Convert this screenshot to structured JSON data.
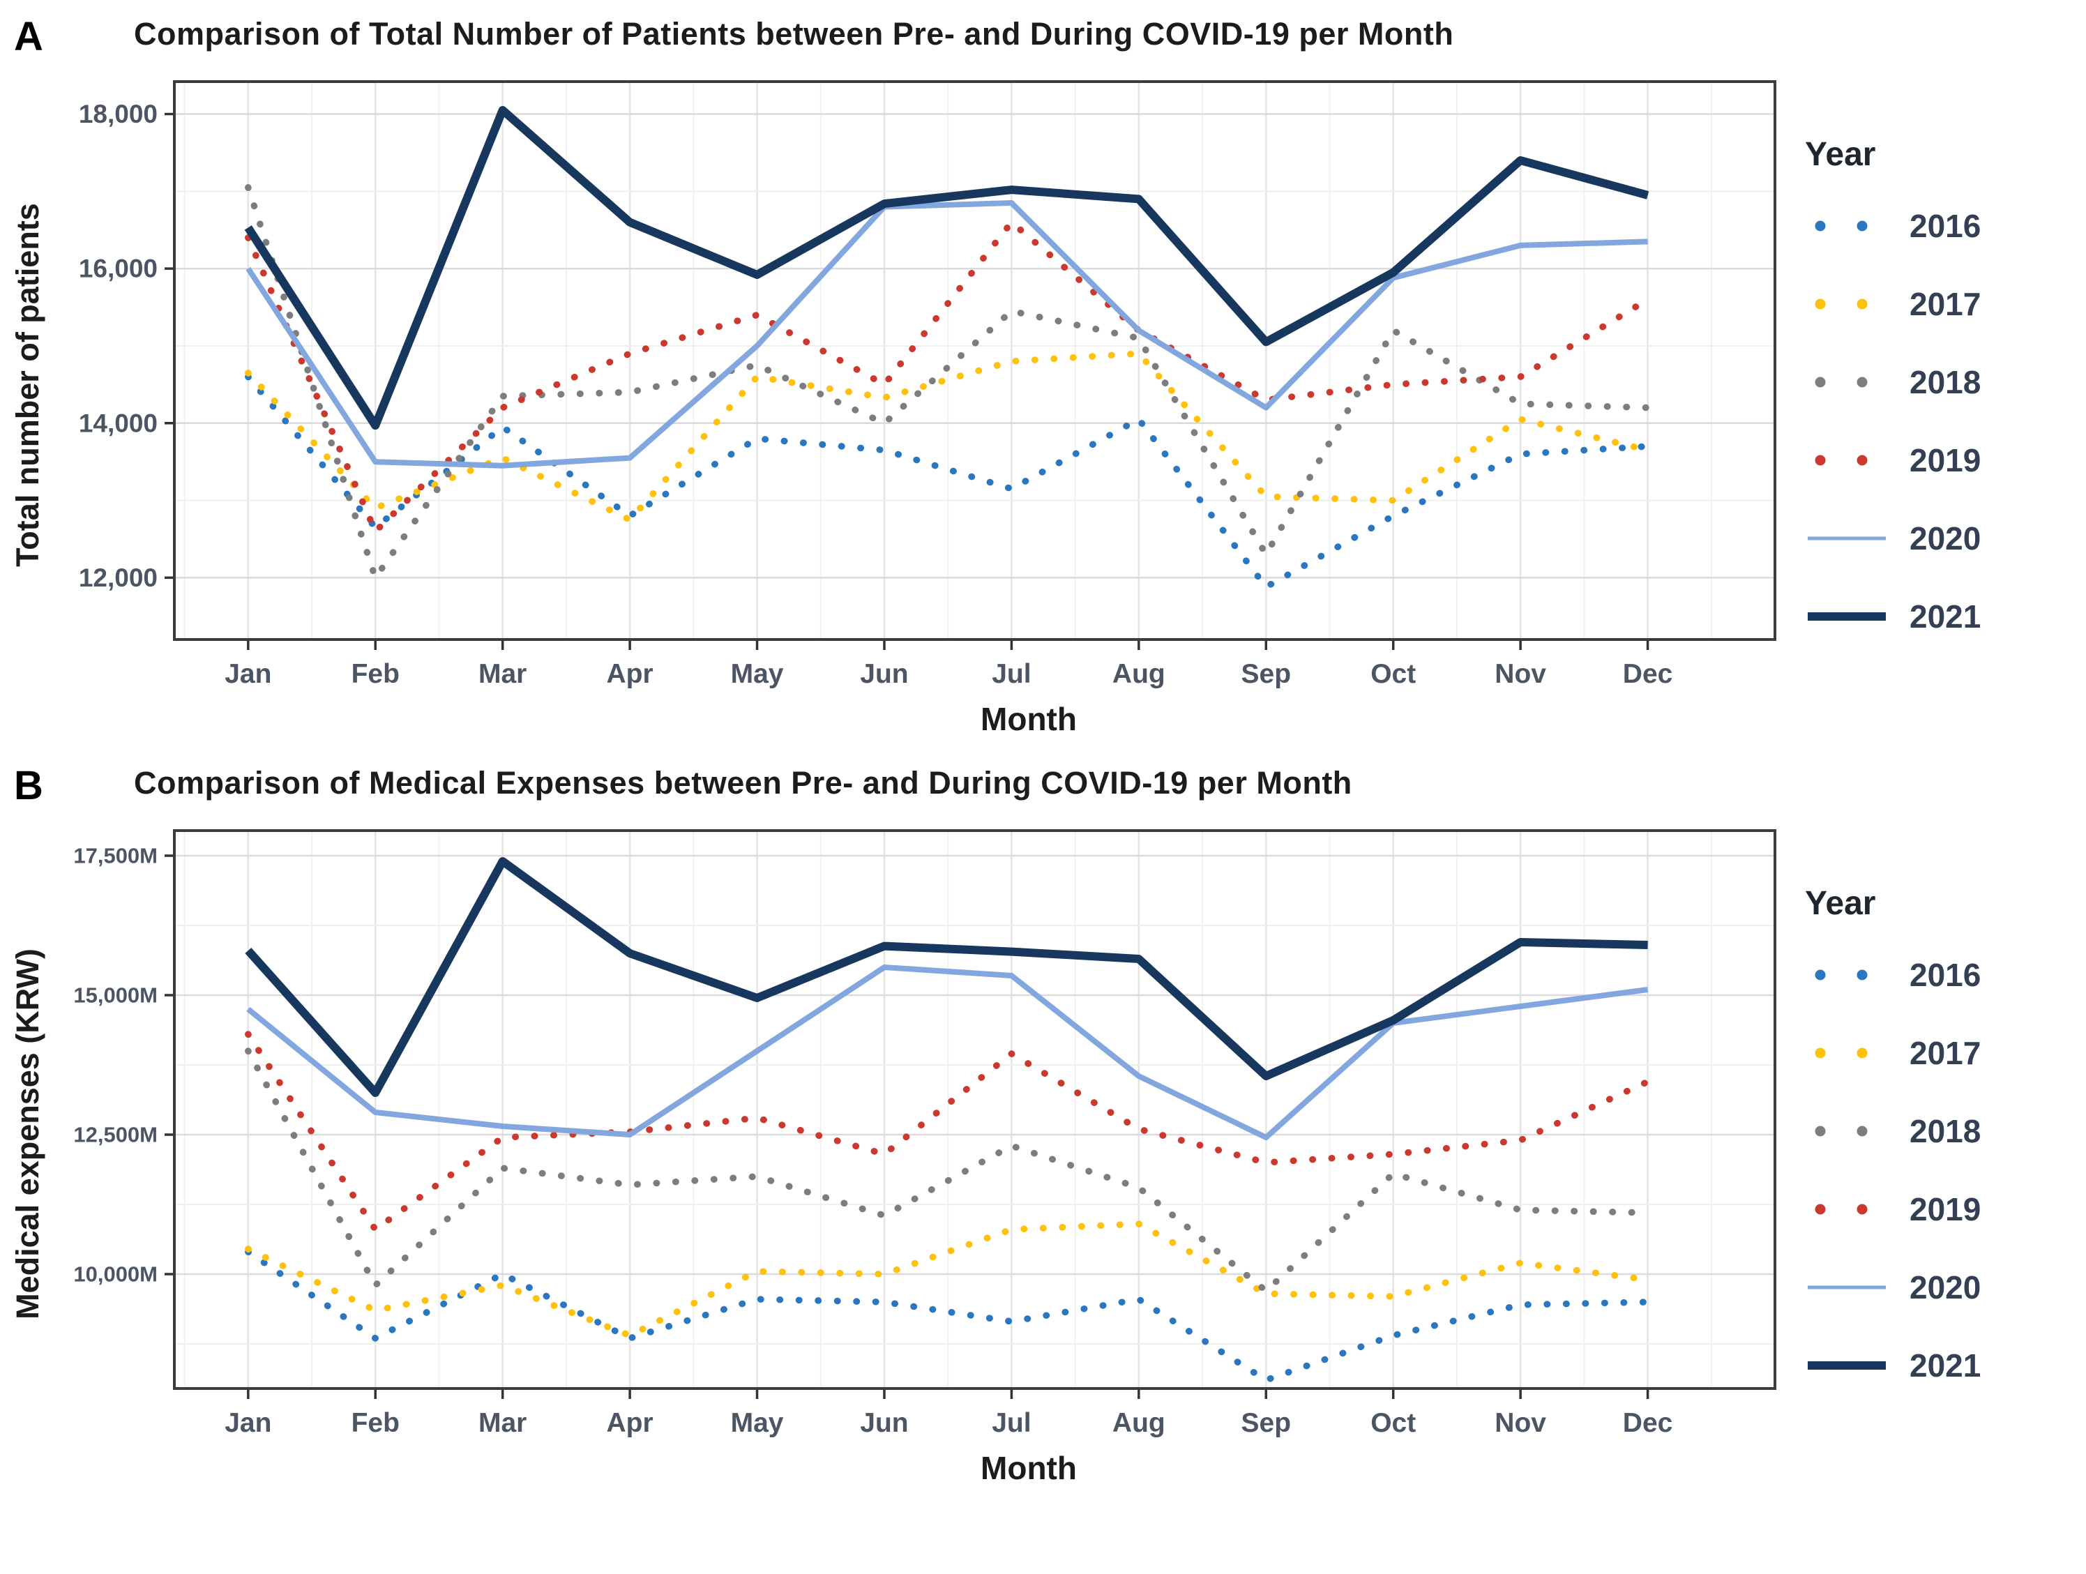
{
  "figure": {
    "type": "two-panel line chart figure",
    "panels": [
      "A",
      "B"
    ]
  },
  "chart_data": [
    {
      "panel_label": "A",
      "type": "line",
      "title": "Comparison of Total Number of Patients between Pre- and During COVID-19 per Month",
      "xlabel": "Month",
      "ylabel": "Total number of patients",
      "legend_title": "Year",
      "legend_position": "right",
      "grid": true,
      "categories": [
        "Jan",
        "Feb",
        "Mar",
        "Apr",
        "May",
        "Jun",
        "Jul",
        "Aug",
        "Sep",
        "Oct",
        "Nov",
        "Dec"
      ],
      "ylim": [
        11200,
        18420
      ],
      "grid_y": {
        "start": 12000,
        "end": 18000,
        "step": 1000
      },
      "major_ticks": [
        {
          "value": 18000,
          "label": "18,000"
        },
        {
          "value": 16000,
          "label": "16,000"
        },
        {
          "value": 14000,
          "label": "14,000"
        },
        {
          "value": 12000,
          "label": "12,000"
        }
      ],
      "series": [
        {
          "name": "2016",
          "style": "dotted",
          "color": "#2B76C0",
          "width": 9.5,
          "values": [
            14600,
            12650,
            13950,
            12800,
            13800,
            13650,
            13150,
            14050,
            11880,
            12800,
            13600,
            13700
          ]
        },
        {
          "name": "2017",
          "style": "dotted",
          "color": "#FFC10A",
          "width": 9.5,
          "values": [
            14650,
            12900,
            13550,
            12750,
            14600,
            14330,
            14800,
            14900,
            13050,
            13000,
            14050,
            13650
          ]
        },
        {
          "name": "2018",
          "style": "dotted",
          "color": "#7D7D7D",
          "width": 9.5,
          "values": [
            17050,
            12000,
            14350,
            14400,
            14750,
            14000,
            15450,
            15100,
            12300,
            15200,
            14250,
            14200
          ]
        },
        {
          "name": "2019",
          "style": "dotted",
          "color": "#CB392E",
          "width": 9.5,
          "values": [
            16400,
            12600,
            14200,
            14900,
            15400,
            14500,
            16600,
            15200,
            14300,
            14500,
            14600,
            15600
          ]
        },
        {
          "name": "2020",
          "style": "solid",
          "color": "#82A6DE",
          "width": 8,
          "values": [
            16000,
            13500,
            13450,
            13550,
            15000,
            16800,
            16850,
            15200,
            14200,
            15880,
            16300,
            16350
          ]
        },
        {
          "name": "2021",
          "style": "solid",
          "color": "#17375E",
          "width": 12,
          "values": [
            16530,
            13970,
            18050,
            16600,
            15920,
            16840,
            17020,
            16900,
            15050,
            15950,
            17400,
            16950
          ]
        }
      ]
    },
    {
      "panel_label": "B",
      "type": "line",
      "title": "Comparison of Medical Expenses between Pre- and During COVID-19 per Month",
      "xlabel": "Month",
      "ylabel": "Medical expenses (KRW)",
      "legend_title": "Year",
      "legend_position": "right",
      "grid": true,
      "units": "millions of KRW",
      "categories": [
        "Jan",
        "Feb",
        "Mar",
        "Apr",
        "May",
        "Jun",
        "Jul",
        "Aug",
        "Sep",
        "Oct",
        "Nov",
        "Dec"
      ],
      "ylim": [
        7950,
        17950
      ],
      "grid_y": {
        "start": 8750,
        "end": 17500,
        "step": 1250
      },
      "major_ticks": [
        {
          "value": 17500,
          "label": "17,500M"
        },
        {
          "value": 15000,
          "label": "15,000M"
        },
        {
          "value": 12500,
          "label": "12,500M"
        },
        {
          "value": 10000,
          "label": "10,000M"
        }
      ],
      "series": [
        {
          "name": "2016",
          "style": "dotted",
          "color": "#2B76C0",
          "width": 9.5,
          "values": [
            10400,
            8850,
            10000,
            8850,
            9550,
            9500,
            9150,
            9550,
            8100,
            8900,
            9450,
            9500
          ]
        },
        {
          "name": "2017",
          "style": "dotted",
          "color": "#FFC10A",
          "width": 9.5,
          "values": [
            10450,
            9350,
            9800,
            8900,
            10050,
            10000,
            10800,
            10900,
            9650,
            9600,
            10200,
            9900
          ]
        },
        {
          "name": "2018",
          "style": "dotted",
          "color": "#7D7D7D",
          "width": 9.5,
          "values": [
            14000,
            9800,
            11900,
            11600,
            11750,
            11050,
            12300,
            11550,
            9700,
            11800,
            11150,
            11100
          ]
        },
        {
          "name": "2019",
          "style": "dotted",
          "color": "#CB392E",
          "width": 9.5,
          "values": [
            14300,
            10800,
            12450,
            12550,
            12800,
            12150,
            13950,
            12600,
            12000,
            12150,
            12400,
            13450
          ]
        },
        {
          "name": "2020",
          "style": "solid",
          "color": "#82A6DE",
          "width": 8,
          "values": [
            14750,
            12900,
            12650,
            12500,
            14000,
            15500,
            15350,
            13550,
            12450,
            14500,
            14800,
            15100
          ]
        },
        {
          "name": "2021",
          "style": "solid",
          "color": "#17375E",
          "width": 12,
          "values": [
            15800,
            13250,
            17400,
            15750,
            14950,
            15880,
            15780,
            15650,
            13550,
            14550,
            15950,
            15900
          ]
        }
      ]
    }
  ]
}
